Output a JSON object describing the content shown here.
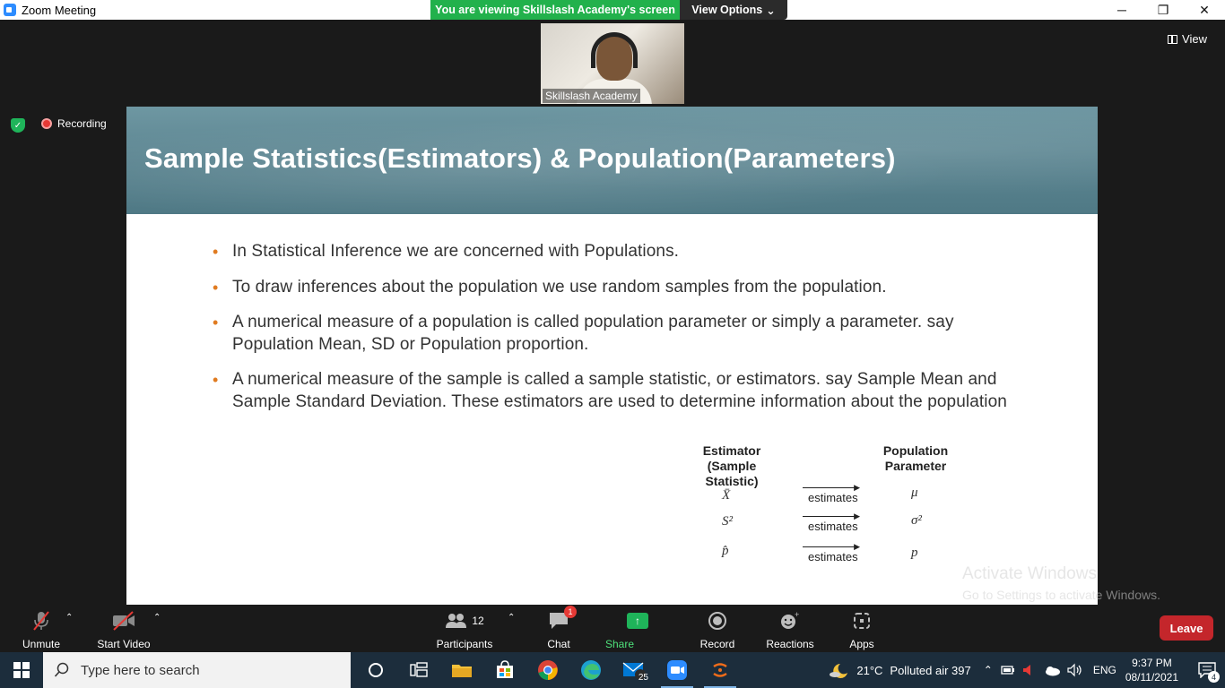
{
  "window": {
    "title": "Zoom Meeting",
    "minimize": "─",
    "restore": "❐",
    "close": "✕"
  },
  "share_banner": {
    "viewing_text": "You are viewing Skillslash Academy's screen",
    "view_options": "View Options",
    "view_options_caret": "⌄"
  },
  "video": {
    "participant_name": "Skillslash Academy"
  },
  "view_button": "View",
  "recording": {
    "label": "Recording",
    "shield_glyph": "✓"
  },
  "slide": {
    "title": "Sample Statistics(Estimators) & Population(Parameters)",
    "bullets": [
      "In Statistical Inference we are concerned with Populations.",
      "To draw inferences about the population we use random samples from the population.",
      "A numerical measure of a population is called population parameter or simply a parameter. say Population Mean, SD or Population proportion.",
      "A numerical measure of the sample is called a sample statistic, or estimators. say Sample Mean and Sample Standard Deviation. These estimators are used to determine information about the population"
    ],
    "bullet_glyph": "•",
    "table": {
      "left_header_1": "Estimator",
      "left_header_2": "(Sample Statistic)",
      "right_header_1": "Population",
      "right_header_2": "Parameter",
      "arrow_label": "estimates",
      "arrow_head": "▶",
      "rows": [
        {
          "estimator": "X̄",
          "parameter": "μ"
        },
        {
          "estimator": "S²",
          "parameter": "σ²"
        },
        {
          "estimator": "p̂",
          "parameter": "p"
        }
      ]
    }
  },
  "watermark": {
    "line1": "Activate Windows",
    "line2": "Go to Settings to activate Windows."
  },
  "toolbar": {
    "unmute": "Unmute",
    "start_video": "Start Video",
    "participants": "Participants",
    "participants_count": "12",
    "chat": "Chat",
    "chat_badge": "1",
    "share_screen": "Share Screen",
    "record": "Record",
    "reactions": "Reactions",
    "apps": "Apps",
    "leave": "Leave",
    "caret": "⌃"
  },
  "taskbar": {
    "search_placeholder": "Type here to search",
    "mail_badge": "25",
    "weather": "21°C",
    "air": "Polluted air 397",
    "language": "ENG",
    "time": "9:37 PM",
    "date": "08/11/2021",
    "notifications": "4"
  }
}
